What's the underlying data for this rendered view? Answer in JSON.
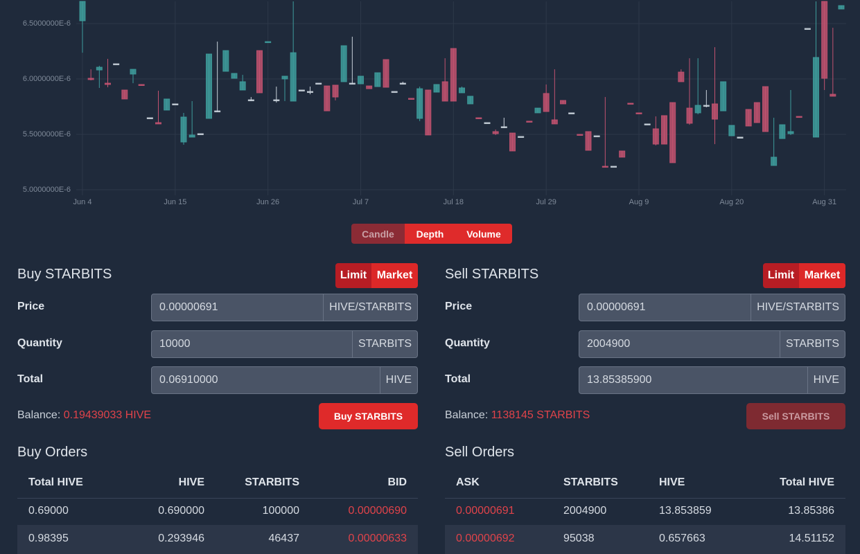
{
  "chart_data": {
    "type": "candlestick",
    "categories": [
      "Jun 4",
      null,
      null,
      null,
      null,
      null,
      null,
      null,
      null,
      null,
      null,
      "Jun 15",
      null,
      null,
      null,
      null,
      null,
      null,
      null,
      null,
      null,
      null,
      "Jun 26",
      null,
      null,
      null,
      null,
      null,
      null,
      null,
      null,
      null,
      null,
      "Jul 7",
      null,
      null,
      null,
      null,
      null,
      null,
      null,
      null,
      null,
      null,
      "Jul 18",
      null,
      null,
      null,
      null,
      null,
      null,
      null,
      null,
      null,
      null,
      "Jul 29",
      null,
      null,
      null,
      null,
      null,
      null,
      null,
      null,
      null,
      null,
      "Aug 9",
      null,
      null,
      null,
      null,
      null,
      null,
      null,
      null,
      null,
      null,
      "Aug 20",
      null,
      null,
      null,
      null,
      null,
      null,
      null,
      null,
      null,
      null,
      "Aug 31",
      null,
      null
    ],
    "open": [
      6.525e-06,
      6.006e-06,
      6.081e-06,
      5.962e-06,
      6.137e-06,
      5.9e-06,
      6.044e-06,
      5.95e-06,
      5.65e-06,
      5.606e-06,
      5.719e-06,
      5.775e-06,
      5.431e-06,
      5.475e-06,
      5.506e-06,
      5.644e-06,
      5.712e-06,
      6.069e-06,
      6.006e-06,
      5.9e-06,
      5.812e-06,
      6.256e-06,
      6.33e-06,
      5.812e-06,
      6e-06,
      5.8e-06,
      5.9e-06,
      5.887e-06,
      5.962e-06,
      5.937e-06,
      5.944e-06,
      5.975e-06,
      5.962e-06,
      5.956e-06,
      5.937e-06,
      5.931e-06,
      6.175e-06,
      5.887e-06,
      5.962e-06,
      5.825e-06,
      5.644e-06,
      5.9e-06,
      5.881e-06,
      5.975e-06,
      6.275e-06,
      5.875e-06,
      5.775e-06,
      5.65e-06,
      5.606e-06,
      5.525e-06,
      5.569e-06,
      5.512e-06,
      5.481e-06,
      5.619e-06,
      5.694e-06,
      5.869e-06,
      5.631e-06,
      5.806e-06,
      5.694e-06,
      5.5e-06,
      5.525e-06,
      5.487e-06,
      5.212e-06,
      5.212e-06,
      5.35e-06,
      5.781e-06,
      5.694e-06,
      5.594e-06,
      5.55e-06,
      5.669e-06,
      5.787e-06,
      6.062e-06,
      5.737e-06,
      5.694e-06,
      5.762e-06,
      5.775e-06,
      5.712e-06,
      5.487e-06,
      5.475e-06,
      5.725e-06,
      5.787e-06,
      5.931e-06,
      5.219e-06,
      5.462e-06,
      5.506e-06,
      5.662e-06,
      6.456e-06,
      5.475e-06,
      6.7e-06,
      5.862e-06,
      6.631e-06
    ],
    "high": [
      6.7e-06,
      6.087e-06,
      6.119e-06,
      6.181e-06,
      6.137e-06,
      5.9e-06,
      6.087e-06,
      5.95e-06,
      5.65e-06,
      5.894e-06,
      5.819e-06,
      5.775e-06,
      5.694e-06,
      5.8e-06,
      5.506e-06,
      6.225e-06,
      6.337e-06,
      6.256e-06,
      6.05e-06,
      6.037e-06,
      5.837e-06,
      6.256e-06,
      6.337e-06,
      5.931e-06,
      6.025e-06,
      6.7e-06,
      5.9e-06,
      5.931e-06,
      5.962e-06,
      5.937e-06,
      5.944e-06,
      6.3e-06,
      6.381e-06,
      6.025e-06,
      5.937e-06,
      6.056e-06,
      6.175e-06,
      5.887e-06,
      5.975e-06,
      5.825e-06,
      5.931e-06,
      5.9e-06,
      5.95e-06,
      6.187e-06,
      6.275e-06,
      5.931e-06,
      5.844e-06,
      5.65e-06,
      5.606e-06,
      5.544e-06,
      5.65e-06,
      5.512e-06,
      5.481e-06,
      5.619e-06,
      5.737e-06,
      5.95e-06,
      6.087e-06,
      5.806e-06,
      5.694e-06,
      5.5e-06,
      5.525e-06,
      5.487e-06,
      5.837e-06,
      5.212e-06,
      5.35e-06,
      5.781e-06,
      5.694e-06,
      5.594e-06,
      5.662e-06,
      5.669e-06,
      5.787e-06,
      6.087e-06,
      6.187e-06,
      6.187e-06,
      5.9e-06,
      6.287e-06,
      5.975e-06,
      5.581e-06,
      5.475e-06,
      5.725e-06,
      5.787e-06,
      5.931e-06,
      5.65e-06,
      5.587e-06,
      5.9e-06,
      5.662e-06,
      6.456e-06,
      6.7e-06,
      6.7e-06,
      6.462e-06,
      6.662e-06
    ],
    "low": [
      6.237e-06,
      5.987e-06,
      5.919e-06,
      5.925e-06,
      6.137e-06,
      5.819e-06,
      5.962e-06,
      5.944e-06,
      5.65e-06,
      5.594e-06,
      5.719e-06,
      5.775e-06,
      5.406e-06,
      5.475e-06,
      5.506e-06,
      5.644e-06,
      5.7e-06,
      6.069e-06,
      6.006e-06,
      5.9e-06,
      5.8e-06,
      5.875e-06,
      6.33e-06,
      5.787e-06,
      5.8e-06,
      5.8e-06,
      5.9e-06,
      5.862e-06,
      5.962e-06,
      5.712e-06,
      5.806e-06,
      5.975e-06,
      5.95e-06,
      5.956e-06,
      5.912e-06,
      5.931e-06,
      5.925e-06,
      5.887e-06,
      5.95e-06,
      5.819e-06,
      5.619e-06,
      5.494e-06,
      5.881e-06,
      5.8e-06,
      5.8e-06,
      5.875e-06,
      5.775e-06,
      5.644e-06,
      5.606e-06,
      5.494e-06,
      5.556e-06,
      5.35e-06,
      5.481e-06,
      5.613e-06,
      5.694e-06,
      5.706e-06,
      5.594e-06,
      5.775e-06,
      5.694e-06,
      5.494e-06,
      5.356e-06,
      5.487e-06,
      5.2e-06,
      5.212e-06,
      5.294e-06,
      5.775e-06,
      5.688e-06,
      5.594e-06,
      5.4e-06,
      5.412e-06,
      5.244e-06,
      5.975e-06,
      5.587e-06,
      5.681e-06,
      5.744e-06,
      5.412e-06,
      5.712e-06,
      5.487e-06,
      5.475e-06,
      5.575e-06,
      5.606e-06,
      5.525e-06,
      5.219e-06,
      5.462e-06,
      5.494e-06,
      5.656e-06,
      6.456e-06,
      5.475e-06,
      5.9e-06,
      5.844e-06,
      6.631e-06
    ],
    "close": [
      6.7e-06,
      5.994e-06,
      6.106e-06,
      5.95e-06,
      6.137e-06,
      5.819e-06,
      6.087e-06,
      5.944e-06,
      5.65e-06,
      5.594e-06,
      5.819e-06,
      5.775e-06,
      5.656e-06,
      5.494e-06,
      5.506e-06,
      6.225e-06,
      5.712e-06,
      6.256e-06,
      6.05e-06,
      5.975e-06,
      5.812e-06,
      5.875e-06,
      6.337e-06,
      5.812e-06,
      6.025e-06,
      6.237e-06,
      5.9e-06,
      5.887e-06,
      5.962e-06,
      5.712e-06,
      5.837e-06,
      6.3e-06,
      5.962e-06,
      6.025e-06,
      5.912e-06,
      6.056e-06,
      5.925e-06,
      5.887e-06,
      5.962e-06,
      5.819e-06,
      5.912e-06,
      5.494e-06,
      5.95e-06,
      5.8e-06,
      5.8e-06,
      5.919e-06,
      5.844e-06,
      5.644e-06,
      5.606e-06,
      5.506e-06,
      5.569e-06,
      5.35e-06,
      5.481e-06,
      5.613e-06,
      5.737e-06,
      5.706e-06,
      5.594e-06,
      5.775e-06,
      5.694e-06,
      5.494e-06,
      5.356e-06,
      5.487e-06,
      5.206e-06,
      5.212e-06,
      5.294e-06,
      5.775e-06,
      5.688e-06,
      5.594e-06,
      5.412e-06,
      5.412e-06,
      5.244e-06,
      5.975e-06,
      5.6e-06,
      5.762e-06,
      5.762e-06,
      5.637e-06,
      5.975e-06,
      5.581e-06,
      5.475e-06,
      5.575e-06,
      5.606e-06,
      5.525e-06,
      5.294e-06,
      5.587e-06,
      5.525e-06,
      5.656e-06,
      6.456e-06,
      6.194e-06,
      6.006e-06,
      5.844e-06,
      6.662e-06
    ],
    "up_color": "#3e9c9c",
    "down_color": "#c25270",
    "flat_color": "#c9d1da",
    "ylim": [
      4.95e-06,
      6.7e-06
    ],
    "yticks": [
      {
        "value": 5e-06,
        "label": "5.0000000E-6"
      },
      {
        "value": 5.5e-06,
        "label": "5.5000000E-6"
      },
      {
        "value": 6e-06,
        "label": "6.0000000E-6"
      },
      {
        "value": 6.5e-06,
        "label": "6.5000000E-6"
      }
    ],
    "grid": true
  },
  "chart_modes": [
    "Candle",
    "Depth",
    "Volume"
  ],
  "buy": {
    "title": "Buy STARBITS",
    "order_types": [
      "Limit",
      "Market"
    ],
    "fields": [
      {
        "label": "Price",
        "value": "0.00000691",
        "unit": "HIVE/STARBITS"
      },
      {
        "label": "Quantity",
        "value": "10000",
        "unit": "STARBITS"
      },
      {
        "label": "Total",
        "value": "0.06910000",
        "unit": "HIVE"
      }
    ],
    "balance_label": "Balance:",
    "balance": "0.19439033 HIVE",
    "button": "Buy STARBITS"
  },
  "sell": {
    "title": "Sell STARBITS",
    "order_types": [
      "Limit",
      "Market"
    ],
    "fields": [
      {
        "label": "Price",
        "value": "0.00000691",
        "unit": "HIVE/STARBITS"
      },
      {
        "label": "Quantity",
        "value": "2004900",
        "unit": "STARBITS"
      },
      {
        "label": "Total",
        "value": "13.85385900",
        "unit": "HIVE"
      }
    ],
    "balance_label": "Balance:",
    "balance": "1138145 STARBITS",
    "button": "Sell STARBITS"
  },
  "buy_orders": {
    "title": "Buy Orders",
    "columns": [
      "Total HIVE",
      "HIVE",
      "STARBITS",
      "BID"
    ],
    "rows": [
      [
        "0.69000",
        "0.690000",
        "100000",
        "0.00000690"
      ],
      [
        "0.98395",
        "0.293946",
        "46437",
        "0.00000633"
      ]
    ]
  },
  "sell_orders": {
    "title": "Sell Orders",
    "columns": [
      "ASK",
      "STARBITS",
      "HIVE",
      "Total HIVE"
    ],
    "rows": [
      [
        "0.00000691",
        "2004900",
        "13.853859",
        "13.85386"
      ],
      [
        "0.00000692",
        "95038",
        "0.657663",
        "14.51152"
      ]
    ]
  }
}
